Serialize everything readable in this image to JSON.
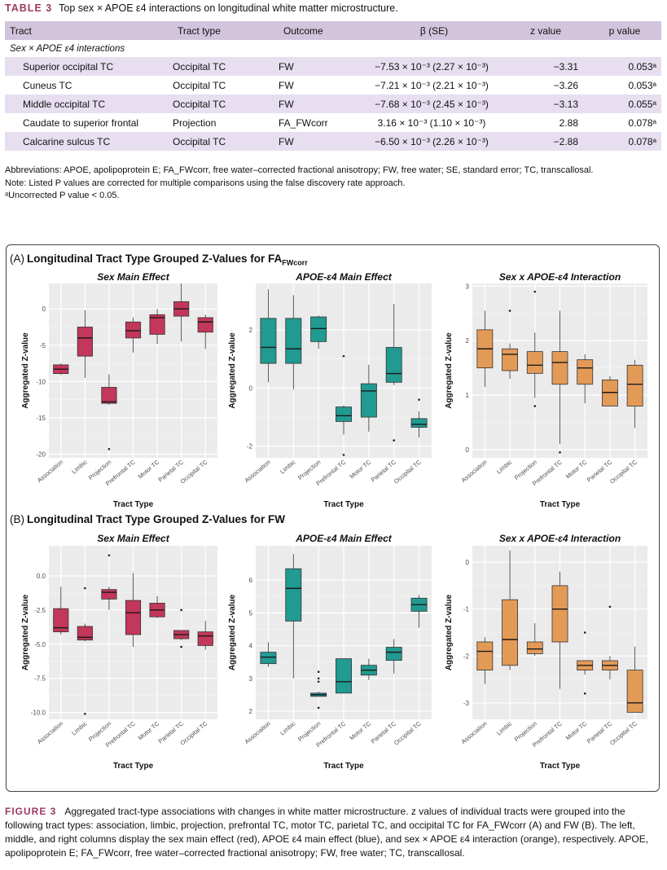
{
  "table": {
    "label": "TABLE 3",
    "caption": "Top sex × APOE ε4 interactions on longitudinal white matter microstructure.",
    "headers": [
      "Tract",
      "Tract type",
      "Outcome",
      "β (SE)",
      "z value",
      "p value"
    ],
    "section": "Sex × APOE ε4 interactions",
    "rows": [
      {
        "tract": "Superior occipital TC",
        "type": "Occipital TC",
        "outcome": "FW",
        "beta": "−7.53 × 10⁻³ (2.27 × 10⁻³)",
        "z": "−3.31",
        "p": "0.053ᵃ"
      },
      {
        "tract": "Cuneus TC",
        "type": "Occipital TC",
        "outcome": "FW",
        "beta": "−7.21 × 10⁻³ (2.21 × 10⁻³)",
        "z": "−3.26",
        "p": "0.053ᵃ"
      },
      {
        "tract": "Middle occipital TC",
        "type": "Occipital TC",
        "outcome": "FW",
        "beta": "−7.68 × 10⁻³ (2.45 × 10⁻³)",
        "z": "−3.13",
        "p": "0.055ᵃ"
      },
      {
        "tract": "Caudate to superior frontal",
        "type": "Projection",
        "outcome": "FA_FWcorr",
        "beta": "3.16 × 10⁻³ (1.10 × 10⁻³)",
        "z": "2.88",
        "p": "0.078ᵃ"
      },
      {
        "tract": "Calcarine sulcus TC",
        "type": "Occipital TC",
        "outcome": "FW",
        "beta": "−6.50 × 10⁻³ (2.26 × 10⁻³)",
        "z": "−2.88",
        "p": "0.078ᵃ"
      }
    ],
    "notes": [
      "Abbreviations: APOE, apolipoprotein E; FA_FWcorr, free water–corrected fractional anisotropy; FW, free water; SE, standard error; TC, transcallosal.",
      "Note: Listed P values are corrected for multiple comparisons using the false discovery rate approach.",
      "ᵃUncorrected P value < 0.05."
    ]
  },
  "figure": {
    "panel_a_label": "(A)",
    "panel_a_title": "Longitudinal Tract Type Grouped Z-Values for FA",
    "panel_a_sub": "FWcorr",
    "panel_b_label": "(B)",
    "panel_b_title": "Longitudinal Tract Type Grouped Z-Values for FW",
    "caption_label": "FIGURE 3",
    "caption": "Aggregated tract-type associations with changes in white matter microstructure. z values of individual tracts were grouped into the following tract types: association, limbic, projection, prefrontal TC, motor TC, parietal TC, and occipital TC for FA_FWcorr (A) and FW (B). The left, middle, and right columns display the sex main effect (red), APOE ε4 main effect (blue), and sex × APOE ε4 interaction (orange), respectively. APOE, apolipoprotein E; FA_FWcorr, free water–corrected fractional anisotropy; FW, free water; TC, transcallosal."
  },
  "chart_data": [
    {
      "type": "box",
      "title": "Sex Main Effect",
      "xlabel": "Tract Type",
      "ylabel": "Aggregated Z-value",
      "color": "#c2375a",
      "categories": [
        "Association",
        "Limbic",
        "Projection",
        "Prefrontal TC",
        "Motor TC",
        "Parietal TC",
        "Occipital TC"
      ],
      "ylim": [
        -20.5,
        3.5
      ],
      "yticks": [
        0,
        -5,
        -10,
        -15,
        -20
      ],
      "boxes": [
        [
          -7.5,
          -7.7,
          -8.3,
          -8.9,
          -9.1
        ],
        [
          -0.2,
          -2.5,
          -4,
          -6.5,
          -9.5
        ],
        [
          -9,
          -10.8,
          -12.8,
          -13,
          -13.2
        ],
        [
          -1.2,
          -1.8,
          -3,
          -4,
          -6
        ],
        [
          0,
          -0.8,
          -1.2,
          -3.5,
          -4.8
        ],
        [
          3.5,
          1,
          0,
          -1,
          -4.5
        ],
        [
          -0.8,
          -1.2,
          -1.8,
          -3.2,
          -5.5
        ]
      ],
      "outliers": [
        [],
        [],
        [
          -19.3
        ],
        [],
        [],
        [],
        []
      ]
    },
    {
      "type": "box",
      "title": "APOE-ε4 Main Effect",
      "xlabel": "Tract Type",
      "ylabel": "Aggregated Z-value",
      "color": "#219a91",
      "categories": [
        "Association",
        "Limbic",
        "Projection",
        "Prefrontal TC",
        "Motor TC",
        "Parietal TC",
        "Occipital TC"
      ],
      "ylim": [
        -2.4,
        3.6
      ],
      "yticks": [
        2,
        0,
        -2
      ],
      "boxes": [
        [
          3.4,
          2.4,
          1.4,
          0.85,
          0.2
        ],
        [
          3.2,
          2.4,
          1.35,
          0.85,
          -0.05
        ],
        [
          2.5,
          2.45,
          2.05,
          1.6,
          1.35
        ],
        [
          -0.6,
          -0.65,
          -0.95,
          -1.15,
          -1.6
        ],
        [
          0.8,
          0.15,
          -0.1,
          -1,
          -1.5
        ],
        [
          2.9,
          1.4,
          0.5,
          0.2,
          0.1
        ],
        [
          -0.8,
          -1.05,
          -1.25,
          -1.35,
          -1.7
        ]
      ],
      "outliers": [
        [],
        [],
        [],
        [
          1.1,
          -2.3
        ],
        [],
        [
          -1.8
        ],
        [
          -0.4
        ]
      ]
    },
    {
      "type": "box",
      "title": "Sex x APOE-ε4 Interaction",
      "xlabel": "Tract Type",
      "ylabel": "Aggregated Z-value",
      "color": "#e39a57",
      "categories": [
        "Association",
        "Limbic",
        "Projection",
        "Prefrontal TC",
        "Motor TC",
        "Parietal TC",
        "Occipital TC"
      ],
      "ylim": [
        -0.15,
        3.05
      ],
      "yticks": [
        3,
        2,
        1,
        0
      ],
      "boxes": [
        [
          2.55,
          2.2,
          1.85,
          1.5,
          1.15
        ],
        [
          1.95,
          1.85,
          1.75,
          1.45,
          1.3
        ],
        [
          2.15,
          1.8,
          1.55,
          1.4,
          0.95
        ],
        [
          2.55,
          1.8,
          1.6,
          1.2,
          0.1
        ],
        [
          1.75,
          1.65,
          1.5,
          1.2,
          0.85
        ],
        [
          1.35,
          1.28,
          1.05,
          0.8,
          0.8
        ],
        [
          1.65,
          1.55,
          1.2,
          0.8,
          0.4
        ]
      ],
      "outliers": [
        [],
        [
          2.55
        ],
        [
          2.9,
          0.8
        ],
        [
          -0.05
        ],
        [],
        [],
        []
      ]
    },
    {
      "type": "box",
      "title": "Sex Main Effect",
      "xlabel": "Tract Type",
      "ylabel": "Aggregated Z-value",
      "color": "#c2375a",
      "categories": [
        "Association",
        "Limbic",
        "Projection",
        "Prefrontal TC",
        "Motor TC",
        "Parietal TC",
        "Occipital TC"
      ],
      "ylim": [
        -10.5,
        2.2
      ],
      "yticks": [
        0,
        -2.5,
        -5,
        -7.5,
        -10
      ],
      "ytick_labels": [
        "0.0",
        "-2.5",
        "-5.0",
        "-7.5",
        "-10.0"
      ],
      "boxes": [
        [
          -0.8,
          -2.4,
          -3.8,
          -4.1,
          -4.3
        ],
        [
          -3.5,
          -3.7,
          -4.5,
          -4.7,
          -4.8
        ],
        [
          -0.8,
          -1,
          -1.2,
          -1.7,
          -2.5
        ],
        [
          0.2,
          -1.8,
          -2.7,
          -4.3,
          -5.2
        ],
        [
          -1.5,
          -2,
          -2.5,
          -3,
          -3.1
        ],
        [
          -4,
          -4,
          -4.3,
          -4.6,
          -4.7
        ],
        [
          -3.3,
          -4.1,
          -4.4,
          -5.1,
          -5.4
        ]
      ],
      "outliers": [
        [],
        [
          -0.9,
          -10.1
        ],
        [
          1.5
        ],
        [],
        [],
        [
          -2.5,
          -5.2
        ],
        []
      ]
    },
    {
      "type": "box",
      "title": "APOE-ε4 Main Effect",
      "xlabel": "Tract Type",
      "ylabel": "Aggregated Z-value",
      "color": "#219a91",
      "categories": [
        "Association",
        "Limbic",
        "Projection",
        "Prefrontal TC",
        "Motor TC",
        "Parietal TC",
        "Occipital TC"
      ],
      "ylim": [
        1.75,
        7.05
      ],
      "yticks": [
        6,
        5,
        4,
        3,
        2
      ],
      "boxes": [
        [
          4.1,
          3.8,
          3.65,
          3.45,
          3.35
        ],
        [
          6.8,
          6.35,
          5.75,
          4.75,
          3
        ],
        [
          2.6,
          2.55,
          2.5,
          2.45,
          2.45
        ],
        [
          3.6,
          3.6,
          2.9,
          2.55,
          2.55
        ],
        [
          3.6,
          3.4,
          3.25,
          3.1,
          2.95
        ],
        [
          4.2,
          3.95,
          3.8,
          3.55,
          3.15
        ],
        [
          5.55,
          5.45,
          5.25,
          5.05,
          4.55
        ]
      ],
      "outliers": [
        [],
        [],
        [
          3.2,
          3,
          2.9,
          2.1
        ],
        [],
        [],
        [],
        []
      ]
    },
    {
      "type": "box",
      "title": "Sex x APOE-ε4 Interaction",
      "xlabel": "Tract Type",
      "ylabel": "Aggregated Z-value",
      "color": "#e39a57",
      "categories": [
        "Association",
        "Limbic",
        "Projection",
        "Prefrontal TC",
        "Motor TC",
        "Parietal TC",
        "Occipital TC"
      ],
      "ylim": [
        -3.35,
        0.35
      ],
      "yticks": [
        0,
        -1,
        -2,
        -3
      ],
      "boxes": [
        [
          -1.6,
          -1.7,
          -1.9,
          -2.3,
          -2.6
        ],
        [
          0.25,
          -0.8,
          -1.65,
          -2.2,
          -2.3
        ],
        [
          -1.3,
          -1.7,
          -1.85,
          -1.95,
          -2.0
        ],
        [
          -0.2,
          -0.5,
          -1.0,
          -1.7,
          -2.7
        ],
        [
          -2.1,
          -2.1,
          -2.2,
          -2.3,
          -2.4
        ],
        [
          -2.0,
          -2.1,
          -2.2,
          -2.3,
          -2.5
        ],
        [
          -1.8,
          -2.3,
          -3.0,
          -3.2,
          -3.2
        ]
      ],
      "outliers": [
        [],
        [],
        [],
        [],
        [
          -1.5,
          -2.8
        ],
        [
          -0.95
        ],
        []
      ]
    }
  ]
}
